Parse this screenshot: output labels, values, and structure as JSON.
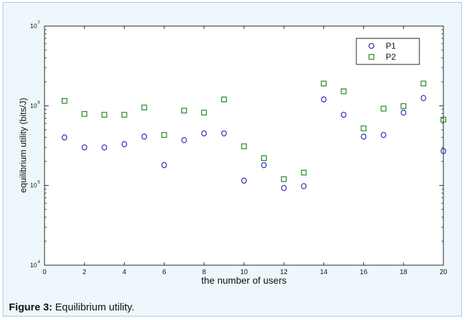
{
  "caption": {
    "label": "Figure 3:",
    "text": "Equilibrium utility."
  },
  "chart_data": {
    "type": "scatter",
    "title": "",
    "xlabel": "the number of users",
    "ylabel": "equilibrium utility (bits/J)",
    "xlim": [
      0,
      20
    ],
    "ylim": [
      10000,
      10000000
    ],
    "y_scale": "log",
    "grid": false,
    "legend_position": "top-right",
    "x_ticks": [
      0,
      2,
      4,
      6,
      8,
      10,
      12,
      14,
      16,
      18,
      20
    ],
    "x_tick_labels": [
      "0",
      "2",
      "4",
      "6",
      "8",
      "10",
      "12",
      "14",
      "16",
      "18",
      "20"
    ],
    "y_ticks": [
      10000,
      100000,
      1000000,
      10000000
    ],
    "y_tick_labels": [
      {
        "base": "10",
        "exp": "4"
      },
      {
        "base": "10",
        "exp": "5"
      },
      {
        "base": "10",
        "exp": "6"
      },
      {
        "base": "10",
        "exp": "7"
      }
    ],
    "x": [
      1,
      2,
      3,
      4,
      5,
      6,
      7,
      8,
      9,
      10,
      11,
      12,
      13,
      14,
      15,
      16,
      17,
      18,
      19,
      20
    ],
    "series": [
      {
        "name": "P1",
        "marker": "circle",
        "color": "#3535b5",
        "values": [
          400000,
          300000,
          300000,
          330000,
          410000,
          180000,
          370000,
          450000,
          450000,
          115000,
          180000,
          93000,
          98000,
          1200000,
          770000,
          410000,
          430000,
          820000,
          1250000,
          270000
        ]
      },
      {
        "name": "P2",
        "marker": "square",
        "color": "#2e8b2e",
        "values": [
          1150000,
          790000,
          770000,
          770000,
          950000,
          430000,
          870000,
          820000,
          1200000,
          310000,
          220000,
          120000,
          145000,
          1900000,
          1520000,
          520000,
          920000,
          990000,
          1900000,
          670000
        ]
      }
    ]
  }
}
